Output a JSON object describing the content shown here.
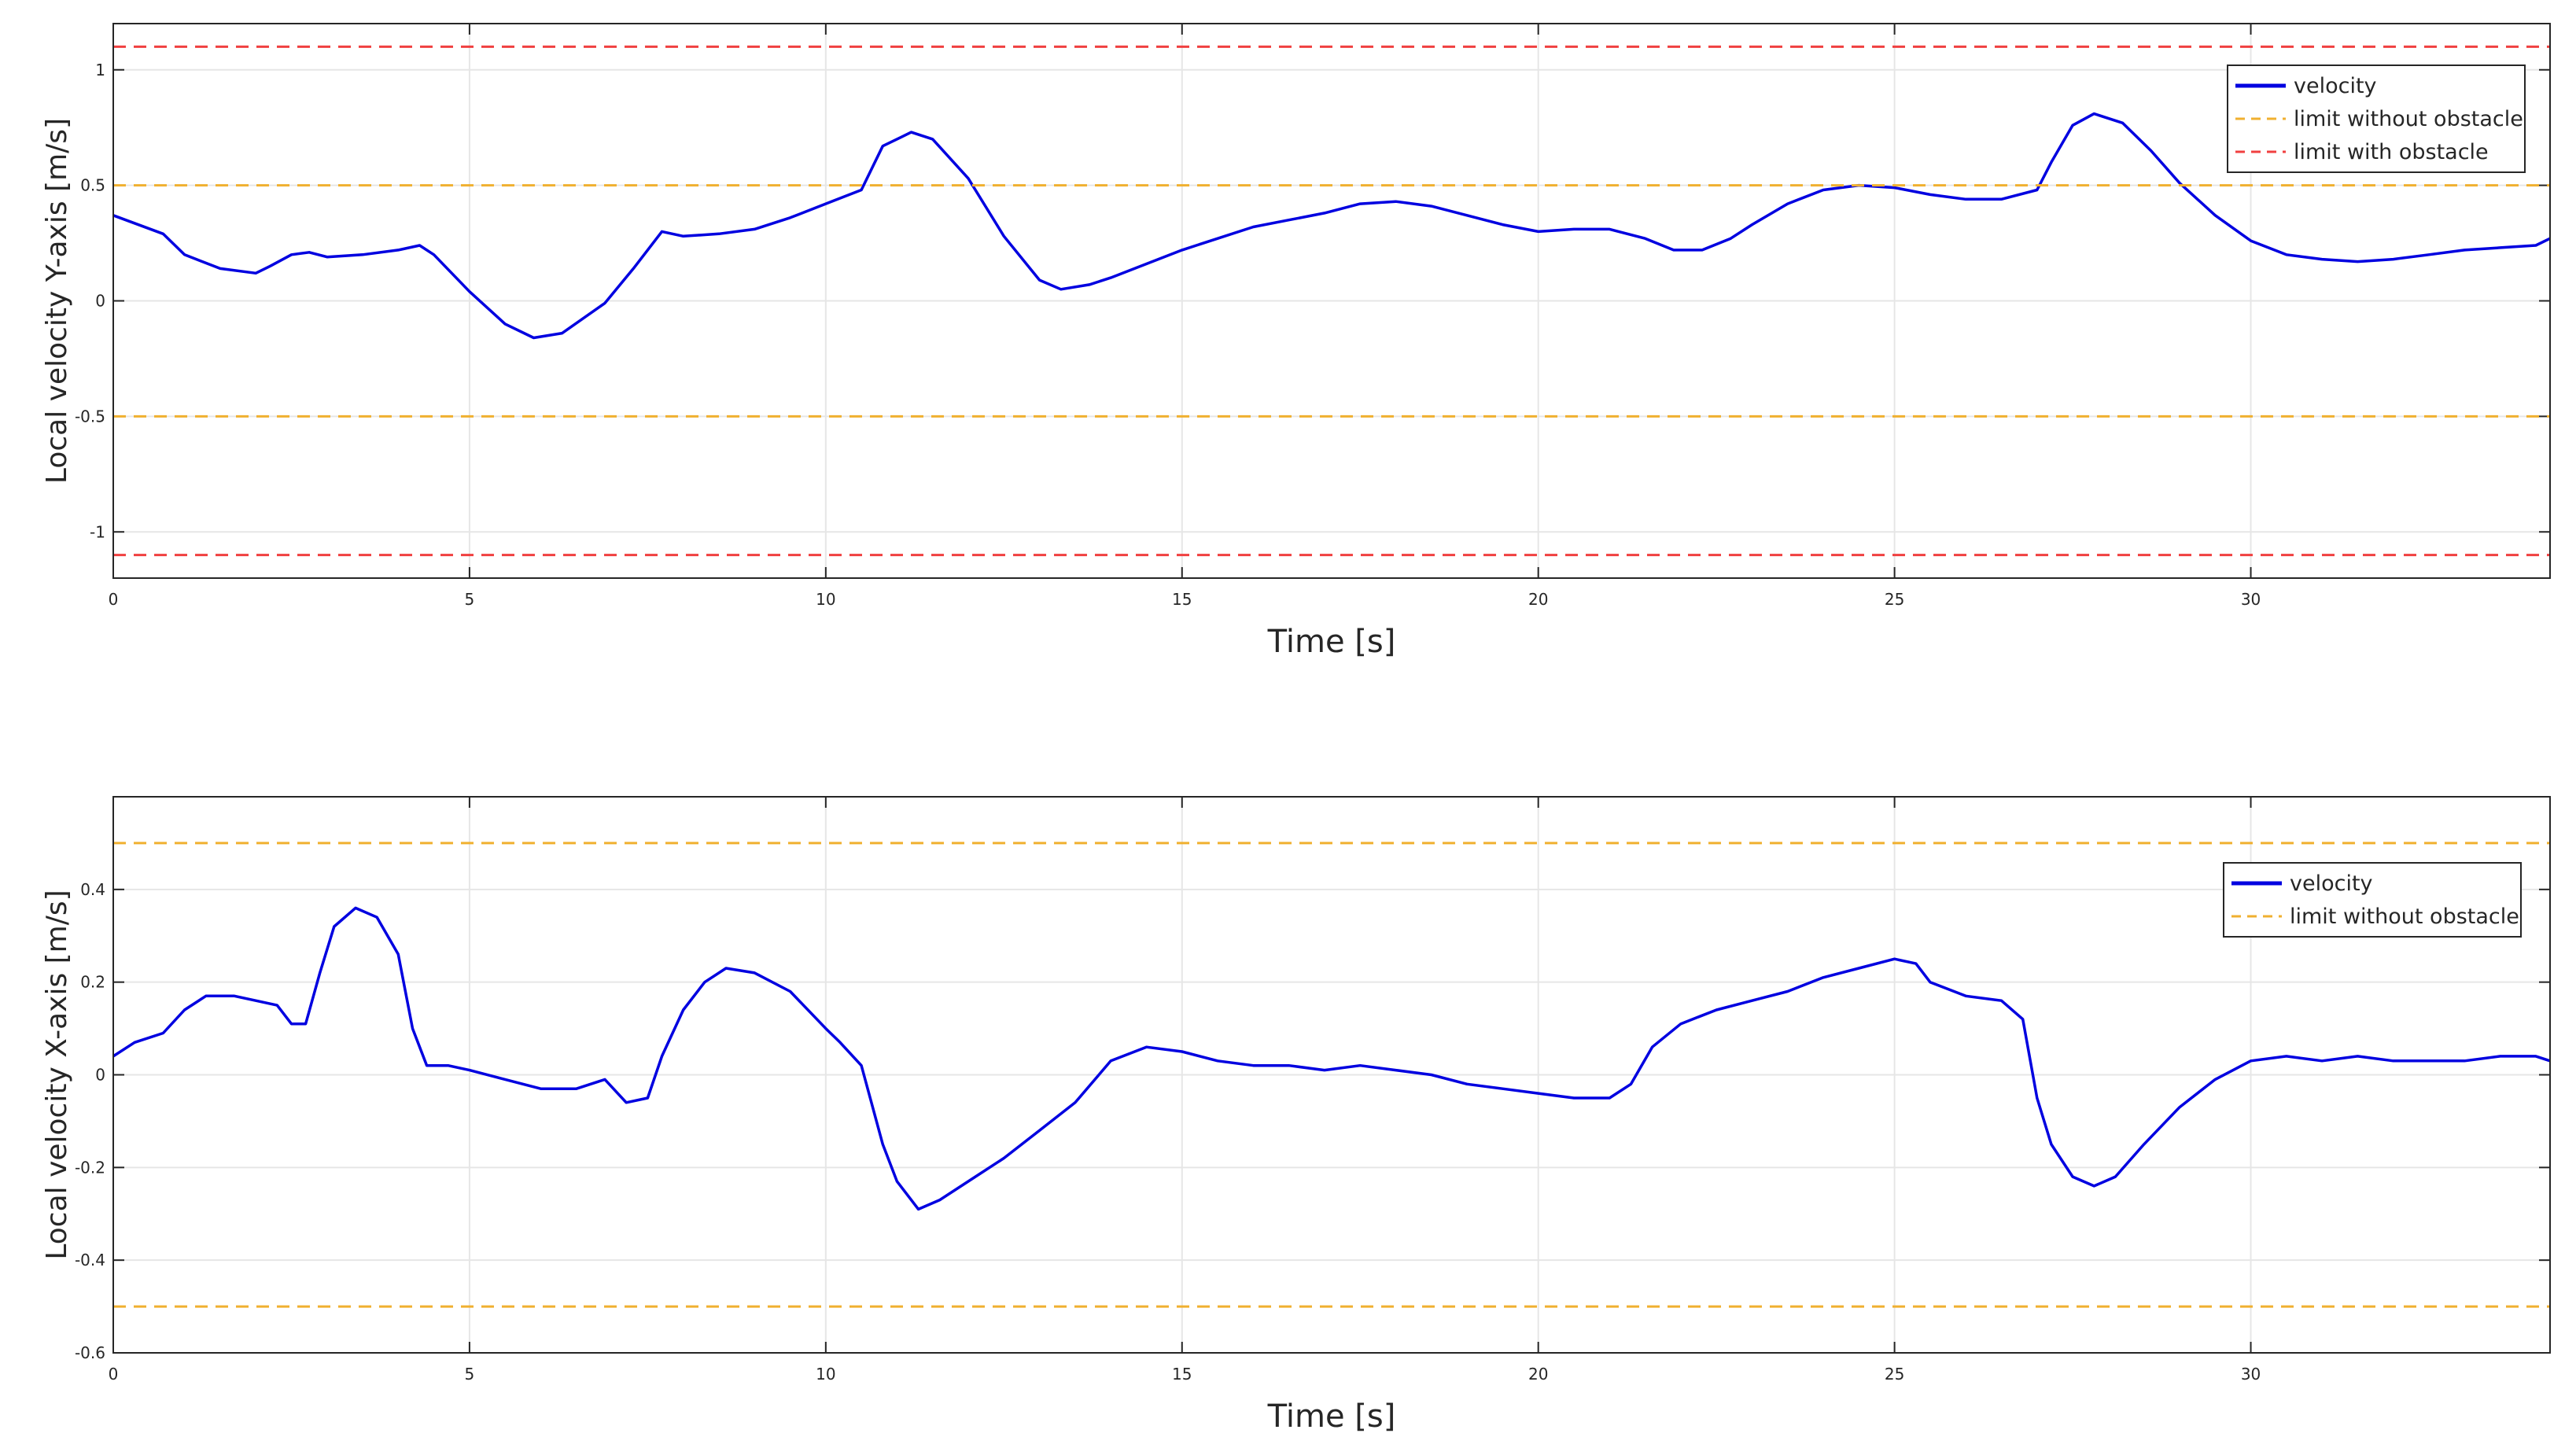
{
  "chart_data": [
    {
      "type": "line",
      "xlabel": "Time [s]",
      "ylabel": "Local velocity Y-axis [m/s]",
      "xlim": [
        0,
        34.2
      ],
      "ylim": [
        -1.2,
        1.2
      ],
      "xticks": [
        0,
        5,
        10,
        15,
        20,
        25,
        30
      ],
      "yticks": [
        -1,
        -0.5,
        0,
        0.5,
        1
      ],
      "grid": true,
      "legend_position": "top-right",
      "series": [
        {
          "name": "velocity",
          "color": "#0000e0",
          "style": "solid",
          "x": [
            0,
            0.7,
            1.0,
            1.5,
            2.0,
            2.2,
            2.5,
            2.75,
            3.0,
            3.5,
            4.0,
            4.3,
            4.5,
            5.0,
            5.5,
            5.9,
            6.3,
            6.9,
            7.3,
            7.7,
            8.0,
            8.5,
            9.0,
            9.5,
            10.0,
            10.5,
            10.8,
            11.2,
            11.5,
            12.0,
            12.5,
            13.0,
            13.3,
            13.7,
            14.0,
            14.5,
            15.0,
            15.5,
            16.0,
            16.5,
            17.0,
            17.5,
            18.0,
            18.5,
            19.0,
            19.5,
            20.0,
            20.5,
            21.0,
            21.5,
            21.9,
            22.3,
            22.7,
            23.0,
            23.5,
            24.0,
            24.5,
            25.0,
            25.5,
            26.0,
            26.5,
            27.0,
            27.2,
            27.5,
            27.8,
            28.2,
            28.6,
            29.0,
            29.5,
            30.0,
            30.5,
            31.0,
            31.5,
            32.0,
            32.5,
            33.0,
            33.5,
            34.0,
            34.2
          ],
          "y": [
            0.37,
            0.29,
            0.2,
            0.14,
            0.12,
            0.15,
            0.2,
            0.21,
            0.19,
            0.2,
            0.22,
            0.24,
            0.2,
            0.04,
            -0.1,
            -0.16,
            -0.14,
            -0.01,
            0.14,
            0.3,
            0.28,
            0.29,
            0.31,
            0.36,
            0.42,
            0.48,
            0.67,
            0.73,
            0.7,
            0.53,
            0.28,
            0.09,
            0.05,
            0.07,
            0.1,
            0.16,
            0.22,
            0.27,
            0.32,
            0.35,
            0.38,
            0.42,
            0.43,
            0.41,
            0.37,
            0.33,
            0.3,
            0.31,
            0.31,
            0.27,
            0.22,
            0.22,
            0.27,
            0.33,
            0.42,
            0.48,
            0.5,
            0.49,
            0.46,
            0.44,
            0.44,
            0.48,
            0.6,
            0.76,
            0.81,
            0.77,
            0.65,
            0.51,
            0.37,
            0.26,
            0.2,
            0.18,
            0.17,
            0.18,
            0.2,
            0.22,
            0.23,
            0.24,
            0.27
          ]
        },
        {
          "name": "limit without obstacle",
          "color": "#f0b030",
          "style": "dashed",
          "y_values": [
            0.5,
            -0.5
          ]
        },
        {
          "name": "limit with obstacle",
          "color": "#f04040",
          "style": "dashed",
          "y_values": [
            1.1,
            -1.1
          ]
        }
      ]
    },
    {
      "type": "line",
      "xlabel": "Time [s]",
      "ylabel": "Local velocity X-axis [m/s]",
      "xlim": [
        0,
        34.2
      ],
      "ylim": [
        -0.6,
        0.6
      ],
      "xticks": [
        0,
        5,
        10,
        15,
        20,
        25,
        30
      ],
      "yticks": [
        -0.6,
        -0.4,
        -0.2,
        0,
        0.2,
        0.4
      ],
      "grid": true,
      "legend_position": "top-right",
      "series": [
        {
          "name": "velocity",
          "color": "#0000e0",
          "style": "solid",
          "x": [
            0,
            0.3,
            0.7,
            1.0,
            1.3,
            1.7,
            2.0,
            2.3,
            2.5,
            2.7,
            2.9,
            3.1,
            3.4,
            3.7,
            4.0,
            4.2,
            4.4,
            4.7,
            5.0,
            5.5,
            6.0,
            6.5,
            6.9,
            7.2,
            7.5,
            7.7,
            8.0,
            8.3,
            8.6,
            9.0,
            9.5,
            10.0,
            10.2,
            10.5,
            10.8,
            11.0,
            11.3,
            11.6,
            12.0,
            12.5,
            13.0,
            13.5,
            14.0,
            14.5,
            15.0,
            15.5,
            16.0,
            16.5,
            17.0,
            17.5,
            18.0,
            18.5,
            19.0,
            19.5,
            20.0,
            20.5,
            21.0,
            21.3,
            21.6,
            22.0,
            22.5,
            23.0,
            23.5,
            24.0,
            24.5,
            25.0,
            25.3,
            25.5,
            26.0,
            26.5,
            26.8,
            27.0,
            27.2,
            27.5,
            27.8,
            28.1,
            28.5,
            29.0,
            29.5,
            30.0,
            30.5,
            31.0,
            31.5,
            32.0,
            32.5,
            33.0,
            33.5,
            34.0,
            34.2
          ],
          "y": [
            0.04,
            0.07,
            0.09,
            0.14,
            0.17,
            0.17,
            0.16,
            0.15,
            0.11,
            0.11,
            0.22,
            0.32,
            0.36,
            0.34,
            0.26,
            0.1,
            0.02,
            0.02,
            0.01,
            -0.01,
            -0.03,
            -0.03,
            -0.01,
            -0.06,
            -0.05,
            0.04,
            0.14,
            0.2,
            0.23,
            0.22,
            0.18,
            0.1,
            0.07,
            0.02,
            -0.15,
            -0.23,
            -0.29,
            -0.27,
            -0.23,
            -0.18,
            -0.12,
            -0.06,
            0.03,
            0.06,
            0.05,
            0.03,
            0.02,
            0.02,
            0.01,
            0.02,
            0.01,
            0.0,
            -0.02,
            -0.03,
            -0.04,
            -0.05,
            -0.05,
            -0.02,
            0.06,
            0.11,
            0.14,
            0.16,
            0.18,
            0.21,
            0.23,
            0.25,
            0.24,
            0.2,
            0.17,
            0.16,
            0.12,
            -0.05,
            -0.15,
            -0.22,
            -0.24,
            -0.22,
            -0.15,
            -0.07,
            -0.01,
            0.03,
            0.04,
            0.03,
            0.04,
            0.03,
            0.03,
            0.03,
            0.04,
            0.04,
            0.03
          ]
        },
        {
          "name": "limit without obstacle",
          "color": "#f0b030",
          "style": "dashed",
          "y_values": [
            0.5,
            -0.5
          ]
        }
      ]
    }
  ]
}
